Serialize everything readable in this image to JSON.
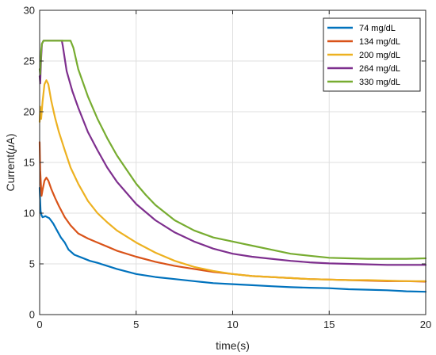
{
  "chart_data": {
    "type": "line",
    "title": "",
    "xlabel": "time(s)",
    "ylabel_prefix": "Current(",
    "ylabel_mu": "μ",
    "ylabel_suffix": "A)",
    "xlim": [
      0,
      20
    ],
    "ylim": [
      0,
      30
    ],
    "xticks": [
      0,
      5,
      10,
      15,
      20
    ],
    "yticks": [
      0,
      5,
      10,
      15,
      20,
      25,
      30
    ],
    "grid": true,
    "legend_position": "top-right",
    "series": [
      {
        "name": "74 mg/dL",
        "color": "#0072BD",
        "x": [
          0,
          0.02,
          0.05,
          0.1,
          0.15,
          0.3,
          0.5,
          0.7,
          0.9,
          1.1,
          1.3,
          1.5,
          1.8,
          2.2,
          2.6,
          3,
          3.5,
          4,
          5,
          6,
          7,
          8,
          9,
          10,
          11,
          12,
          13,
          14,
          15,
          16,
          17,
          18,
          19,
          20
        ],
        "y": [
          12.5,
          11.5,
          10.2,
          9.8,
          9.6,
          9.7,
          9.5,
          9.0,
          8.3,
          7.6,
          7.1,
          6.4,
          5.9,
          5.6,
          5.3,
          5.1,
          4.8,
          4.5,
          4.0,
          3.7,
          3.5,
          3.3,
          3.1,
          3.0,
          2.9,
          2.8,
          2.7,
          2.65,
          2.6,
          2.5,
          2.45,
          2.4,
          2.3,
          2.25
        ]
      },
      {
        "name": "134 mg/dL",
        "color": "#D95319",
        "x": [
          0,
          0.03,
          0.1,
          0.15,
          0.25,
          0.35,
          0.45,
          0.6,
          0.8,
          1,
          1.3,
          1.6,
          2,
          2.5,
          3,
          3.5,
          4,
          5,
          6,
          7,
          8,
          9,
          10,
          11,
          12,
          13,
          14,
          15,
          16,
          17,
          18,
          19,
          20
        ],
        "y": [
          17,
          14.2,
          11.7,
          12.3,
          13.2,
          13.5,
          13.2,
          12.4,
          11.5,
          10.7,
          9.6,
          8.8,
          8.0,
          7.5,
          7.1,
          6.7,
          6.3,
          5.7,
          5.2,
          4.8,
          4.5,
          4.2,
          4.0,
          3.8,
          3.7,
          3.6,
          3.5,
          3.45,
          3.4,
          3.35,
          3.3,
          3.3,
          3.25
        ]
      },
      {
        "name": "200 mg/dL",
        "color": "#EDB120",
        "x": [
          0,
          0.03,
          0.08,
          0.15,
          0.25,
          0.35,
          0.45,
          0.6,
          0.8,
          1,
          1.3,
          1.6,
          2,
          2.5,
          3,
          3.5,
          4,
          4.5,
          5,
          6,
          7,
          8,
          9,
          10,
          11,
          12,
          13,
          14,
          15,
          16,
          17,
          18,
          19,
          20
        ],
        "y": [
          19,
          20.5,
          19.3,
          21,
          22.7,
          23.1,
          22.7,
          21.1,
          19.4,
          18.0,
          16.2,
          14.5,
          12.9,
          11.2,
          10.0,
          9.1,
          8.3,
          7.7,
          7.1,
          6.1,
          5.3,
          4.7,
          4.3,
          4.0,
          3.8,
          3.7,
          3.6,
          3.5,
          3.45,
          3.4,
          3.4,
          3.35,
          3.3,
          3.3
        ]
      },
      {
        "name": "264 mg/dL",
        "color": "#7E2F8E",
        "x": [
          0,
          0.03,
          0.08,
          0.12,
          0.2,
          0.4,
          0.8,
          1.2,
          1.15,
          1.2,
          1.4,
          1.7,
          2,
          2.5,
          3,
          3.5,
          4,
          4.5,
          5,
          6,
          7,
          8,
          9,
          10,
          11,
          12,
          13,
          14,
          15,
          16,
          17,
          18,
          19,
          20
        ],
        "y": [
          23.5,
          22.8,
          25.3,
          26.7,
          27,
          27,
          27,
          27,
          27,
          26.5,
          24.0,
          22.0,
          20.4,
          18.0,
          16.2,
          14.5,
          13.1,
          12.0,
          10.9,
          9.3,
          8.1,
          7.2,
          6.5,
          6.0,
          5.7,
          5.5,
          5.3,
          5.15,
          5.05,
          5.0,
          4.95,
          4.9,
          4.9,
          4.9
        ]
      },
      {
        "name": "330 mg/dL",
        "color": "#77AC30",
        "x": [
          0,
          0.03,
          0.08,
          0.12,
          0.2,
          0.4,
          0.8,
          1.2,
          1.6,
          1.75,
          2,
          2.5,
          3,
          3.5,
          4,
          4.5,
          5,
          5.5,
          6,
          7,
          8,
          9,
          10,
          10.5,
          11,
          12,
          13,
          14,
          15,
          16,
          17,
          18,
          19,
          20
        ],
        "y": [
          24.2,
          23.7,
          26,
          26.7,
          27,
          27,
          27,
          27,
          27,
          26.3,
          24.2,
          21.5,
          19.3,
          17.4,
          15.7,
          14.3,
          12.9,
          11.8,
          10.8,
          9.3,
          8.3,
          7.6,
          7.2,
          7.0,
          6.8,
          6.4,
          6.0,
          5.8,
          5.6,
          5.55,
          5.5,
          5.5,
          5.5,
          5.55
        ]
      }
    ]
  }
}
